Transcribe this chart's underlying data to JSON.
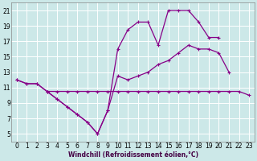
{
  "xlabel": "Windchill (Refroidissement éolien,°C)",
  "bg_color": "#cce8e8",
  "grid_color": "#b0d0d0",
  "line_color": "#880088",
  "x": [
    0,
    1,
    2,
    3,
    4,
    5,
    6,
    7,
    8,
    9,
    10,
    11,
    12,
    13,
    14,
    15,
    16,
    17,
    18,
    19,
    20,
    21,
    22,
    23
  ],
  "line_flat": [
    null,
    null,
    null,
    10.5,
    10.5,
    10.5,
    10.5,
    10.5,
    10.5,
    10.5,
    10.5,
    10.5,
    10.5,
    10.5,
    10.5,
    10.5,
    10.5,
    10.5,
    10.5,
    10.5,
    10.5,
    10.5,
    10.5,
    10.0
  ],
  "line_mid": [
    12.0,
    11.5,
    11.5,
    10.5,
    9.5,
    8.5,
    7.5,
    6.5,
    5.0,
    8.0,
    12.5,
    12.0,
    12.5,
    13.0,
    14.0,
    14.5,
    15.5,
    16.5,
    16.0,
    16.0,
    15.5,
    13.0,
    null,
    null
  ],
  "line_top": [
    12.0,
    11.5,
    11.5,
    10.5,
    9.5,
    8.5,
    7.5,
    6.5,
    5.0,
    8.0,
    16.0,
    18.5,
    19.5,
    19.5,
    16.5,
    21.0,
    21.0,
    21.0,
    19.5,
    17.5,
    17.5,
    null,
    null,
    null
  ],
  "ylim": [
    4,
    22
  ],
  "xlim": [
    -0.5,
    23.5
  ],
  "yticks": [
    5,
    7,
    9,
    11,
    13,
    15,
    17,
    19,
    21
  ],
  "xticks": [
    0,
    1,
    2,
    3,
    4,
    5,
    6,
    7,
    8,
    9,
    10,
    11,
    12,
    13,
    14,
    15,
    16,
    17,
    18,
    19,
    20,
    21,
    22,
    23
  ],
  "xlabel_fontsize": 5.5,
  "tick_fontsize": 5.5
}
